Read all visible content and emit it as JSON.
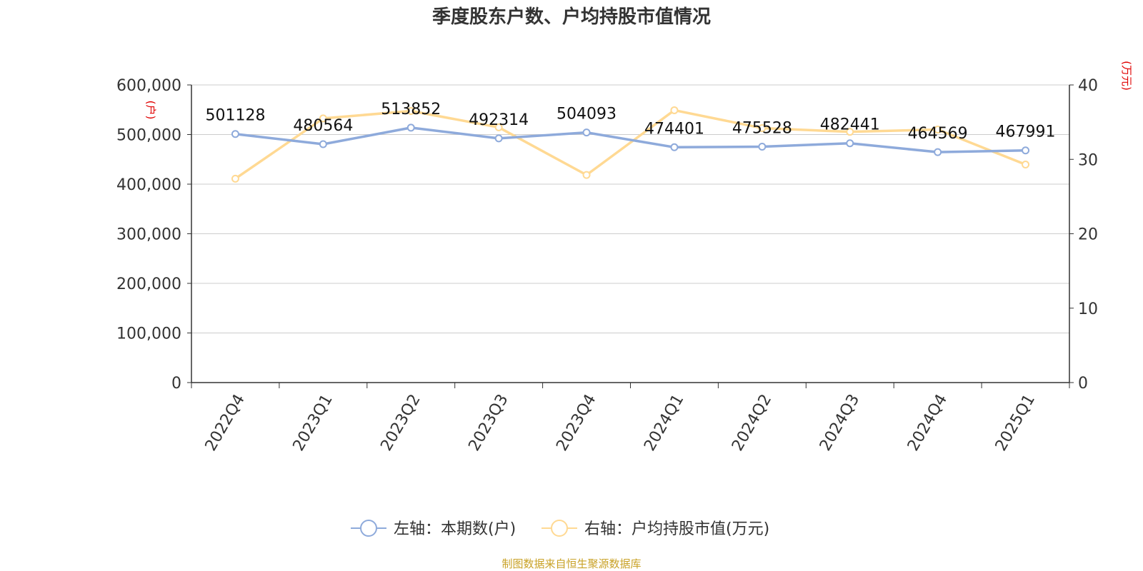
{
  "colors": {
    "left_series": "#8eaadb",
    "right_series": "#ffd993",
    "unit_text": "#e00000",
    "source_text": "#c9a227",
    "grid": "#cccccc",
    "axis": "#333333"
  },
  "source": "制图数据来自恒生聚源数据库",
  "chart_data": {
    "type": "line",
    "title": "季度股东户数、户均持股市值情况",
    "categories": [
      "2022Q4",
      "2023Q1",
      "2023Q2",
      "2023Q3",
      "2023Q4",
      "2024Q1",
      "2024Q2",
      "2024Q3",
      "2024Q4",
      "2025Q1"
    ],
    "y_left": {
      "unit": "(户)",
      "ylim": [
        0,
        600000
      ],
      "ticks": [
        0,
        100000,
        200000,
        300000,
        400000,
        500000,
        600000
      ],
      "tick_labels": [
        "0",
        "100,000",
        "200,000",
        "300,000",
        "400,000",
        "500,000",
        "600,000"
      ]
    },
    "y_right": {
      "unit": "(万元)",
      "ylim": [
        0,
        40
      ],
      "ticks": [
        0,
        10,
        20,
        30,
        40
      ],
      "tick_labels": [
        "0",
        "10",
        "20",
        "30",
        "40"
      ]
    },
    "grid": true,
    "legend_position": "bottom-center",
    "series": [
      {
        "name": "左轴：本期数(户)",
        "axis": "left",
        "values": [
          501128,
          480564,
          513852,
          492314,
          504093,
          474401,
          475528,
          482441,
          464569,
          467991
        ],
        "data_labels": [
          "501128",
          "480564",
          "513852",
          "492314",
          "504093",
          "474401",
          "475528",
          "482441",
          "464569",
          "467991"
        ]
      },
      {
        "name": "右轴：户均持股市值(万元)",
        "axis": "right",
        "values": [
          27.4,
          35.5,
          36.5,
          34.3,
          27.9,
          36.6,
          34.2,
          33.7,
          34.0,
          29.3
        ]
      }
    ]
  }
}
